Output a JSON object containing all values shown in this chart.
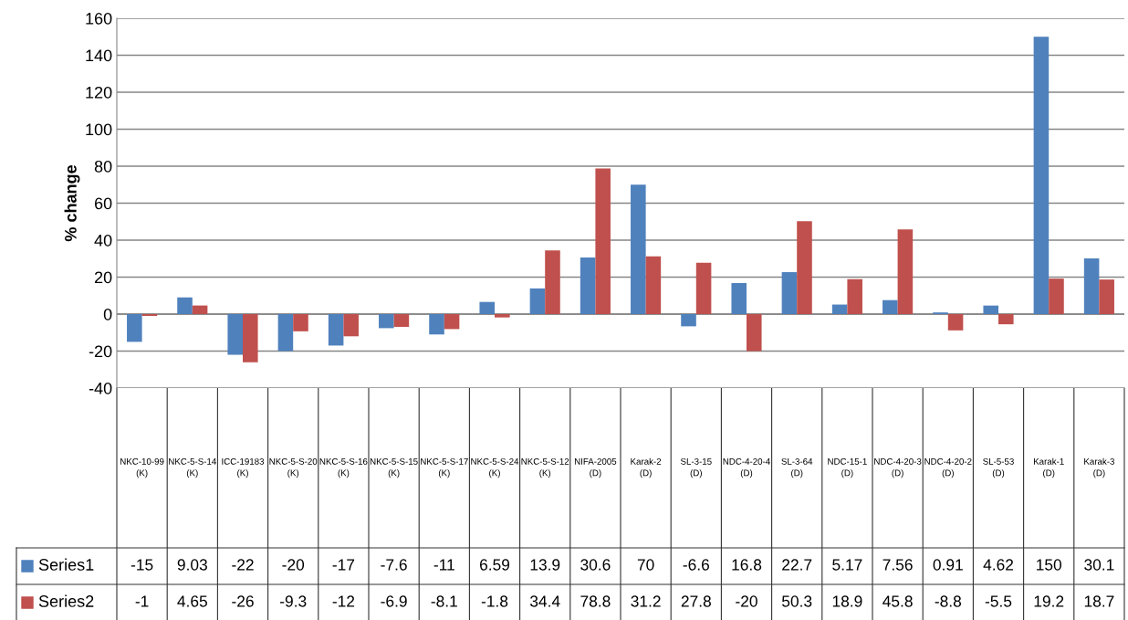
{
  "chart_data": {
    "type": "bar",
    "ylabel": "% change",
    "categories": [
      "NKC-10-99 (K)",
      "NKC-5-S-14 (K)",
      "ICC-19183 (K)",
      "NKC-5-S-20 (K)",
      "NKC-5-S-16 (K)",
      "NKC-5-S-15 (K)",
      "NKC-5-S-17 (K)",
      "NKC-5-S-24 (K)",
      "NKC-5-S-12 (K)",
      "NIFA-2005 (D)",
      "Karak-2 (D)",
      "SL-3-15 (D)",
      "NDC-4-20-4 (D)",
      "SL-3-64 (D)",
      "NDC-15-1 (D)",
      "NDC-4-20-3 (D)",
      "NDC-4-20-2 (D)",
      "SL-5-53 (D)",
      "Karak-1 (D)",
      "Karak-3 (D)"
    ],
    "series": [
      {
        "name": "Series1",
        "color": "#4f81bd",
        "values": [
          -15,
          9.03,
          -22,
          -20,
          -17,
          -7.6,
          -11,
          6.59,
          13.9,
          30.6,
          70,
          -6.6,
          16.8,
          22.7,
          5.17,
          7.56,
          0.91,
          4.62,
          150,
          30.1
        ]
      },
      {
        "name": "Series2",
        "color": "#c0504d",
        "values": [
          -1,
          4.65,
          -26,
          -9.3,
          -12,
          -6.9,
          -8.1,
          -1.8,
          34.4,
          78.8,
          31.2,
          27.8,
          -20,
          50.3,
          18.9,
          45.8,
          -8.8,
          -5.5,
          19.2,
          18.7
        ]
      }
    ],
    "ylim": [
      -40,
      160
    ],
    "yticks": [
      -40,
      -20,
      0,
      20,
      40,
      60,
      80,
      100,
      120,
      140,
      160
    ],
    "grid": "y",
    "data_labels": true,
    "legend": "bottom"
  }
}
